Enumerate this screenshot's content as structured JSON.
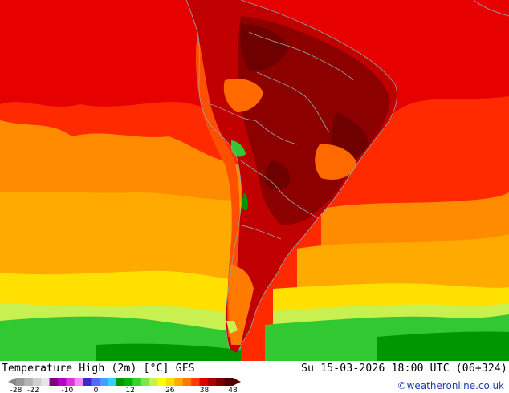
{
  "header": {
    "title": "Temperature High (2m) [°C] GFS",
    "datetime": "Su 15-03-2026 18:00 UTC (06+324)",
    "copyright": "©weatheronline.co.uk"
  },
  "legend": {
    "tick_labels": [
      "-28",
      "-22",
      "-10",
      "0",
      "12",
      "26",
      "38",
      "48"
    ],
    "tick_values": [
      -28,
      -22,
      -10,
      0,
      12,
      26,
      38,
      48
    ],
    "range": [
      -28,
      48
    ],
    "colors": [
      "#9a9a9a",
      "#b4b4b4",
      "#cfcfcf",
      "#e6e6e6",
      "#800080",
      "#b400c8",
      "#dc32dc",
      "#f08cf0",
      "#3c28c8",
      "#5a64ff",
      "#46a0ff",
      "#32d2ff",
      "#009600",
      "#00b400",
      "#32d232",
      "#78e650",
      "#c8f050",
      "#ffff00",
      "#ffdc00",
      "#ffaa00",
      "#ff7800",
      "#ff3c00",
      "#dc0000",
      "#aa0000",
      "#780000",
      "#500000"
    ]
  },
  "map": {
    "region": "South America",
    "colors": {
      "ocean_warm": "#ff2a00",
      "ocean_hot": "#e60000",
      "orange": "#ff8c00",
      "amber": "#ffaa00",
      "yellow": "#ffe000",
      "yellow_green": "#c8f050",
      "green": "#32c832",
      "dark_green": "#009600",
      "land_hot": "#c00000",
      "land_very_hot": "#8c0000",
      "land_extreme": "#6e0000",
      "highland_cool": "#ff6a00",
      "andes": "#ff5000",
      "patagonia": "#ff7a00",
      "borders": "#9a9a9a"
    }
  }
}
